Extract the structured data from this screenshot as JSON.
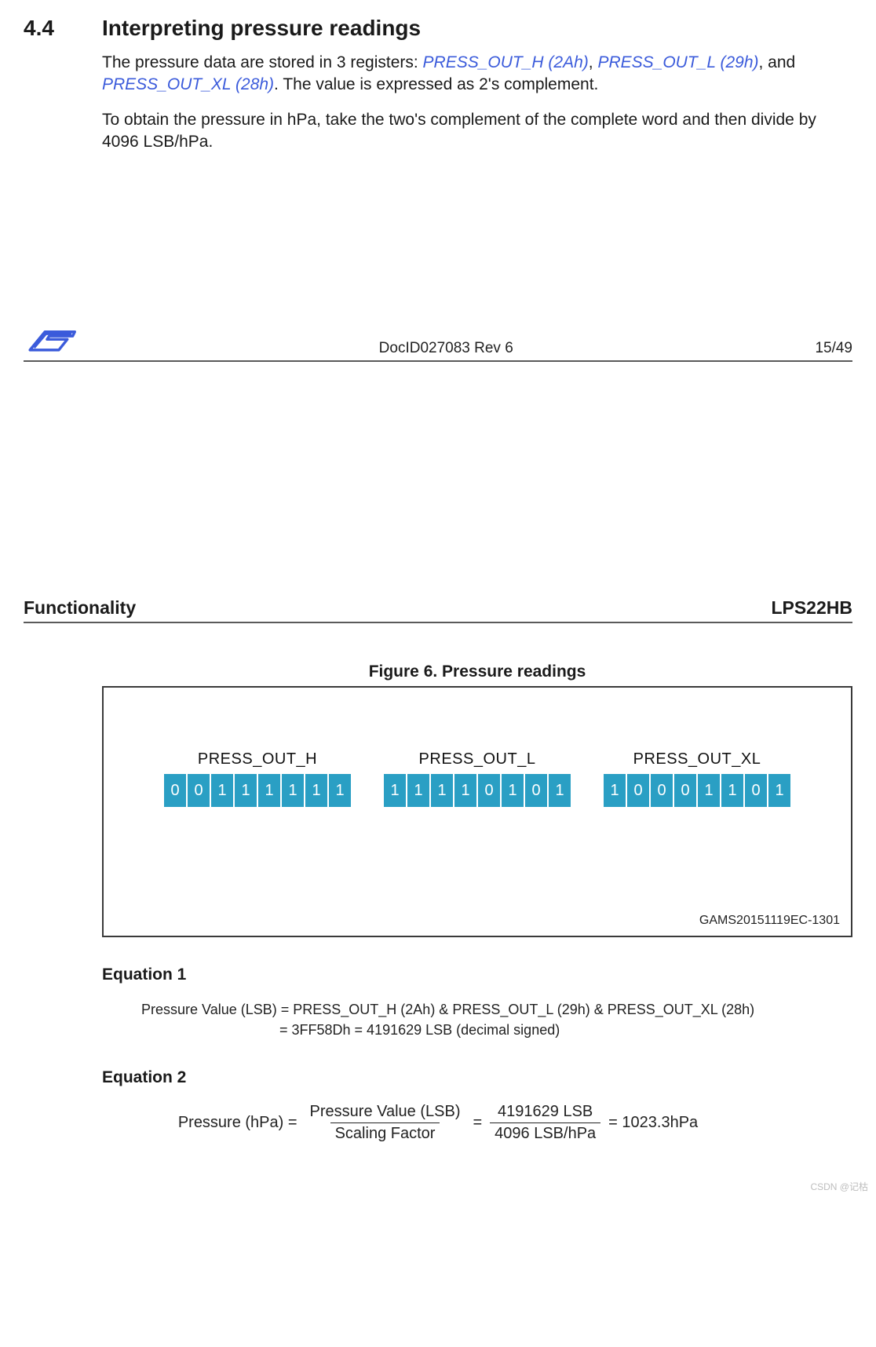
{
  "section": {
    "number": "4.4",
    "title": "Interpreting pressure readings"
  },
  "paragraphs": {
    "p1_parts": {
      "a": "The pressure data are stored in 3 registers: ",
      "r1": "PRESS_OUT_H (2Ah)",
      "b": ", ",
      "r2": "PRESS_OUT_L (29h)",
      "c": ", and ",
      "r3": "PRESS_OUT_XL (28h)",
      "d": ". The value is expressed as 2's complement."
    },
    "p2": "To obtain the pressure in hPa, take the two's complement of the complete word and then divide by 4096 LSB/hPa."
  },
  "colors": {
    "link": "#3b5bdb",
    "bit_bg": "#2a9fc4",
    "bit_border": "#ffffff",
    "bit_text": "#ffffff",
    "rule": "#5a5a5a"
  },
  "footer": {
    "docid": "DocID027083 Rev 6",
    "page": "15/49"
  },
  "page2": {
    "left": "Functionality",
    "right": "LPS22HB"
  },
  "figure": {
    "caption": "Figure 6. Pressure readings",
    "code": "GAMS20151119EC-1301",
    "registers": [
      {
        "label": "PRESS_OUT_H",
        "bits": [
          "0",
          "0",
          "1",
          "1",
          "1",
          "1",
          "1",
          "1"
        ]
      },
      {
        "label": "PRESS_OUT_L",
        "bits": [
          "1",
          "1",
          "1",
          "1",
          "0",
          "1",
          "0",
          "1"
        ]
      },
      {
        "label": "PRESS_OUT_XL",
        "bits": [
          "1",
          "0",
          "0",
          "0",
          "1",
          "1",
          "0",
          "1"
        ]
      }
    ],
    "bit_cell": {
      "w": 30,
      "h": 44,
      "fontsize": 20
    }
  },
  "equations": {
    "eq1": {
      "heading": "Equation 1",
      "line1": "Pressure Value (LSB) = PRESS_OUT_H (2Ah) & PRESS_OUT_L (29h) & PRESS_OUT_XL (28h)",
      "line2_indent": "= 3FF58Dh = 4191629  LSB (decimal signed)"
    },
    "eq2": {
      "heading": "Equation 2",
      "lhs": "Pressure (hPa) =",
      "frac1_num": "Pressure Value (LSB)",
      "frac1_den": "Scaling Factor",
      "eq": "=",
      "frac2_num": "4191629 LSB",
      "frac2_den": "4096 LSB/hPa",
      "rhs": "= 1023.3hPa"
    }
  },
  "watermark": "CSDN @记枯"
}
